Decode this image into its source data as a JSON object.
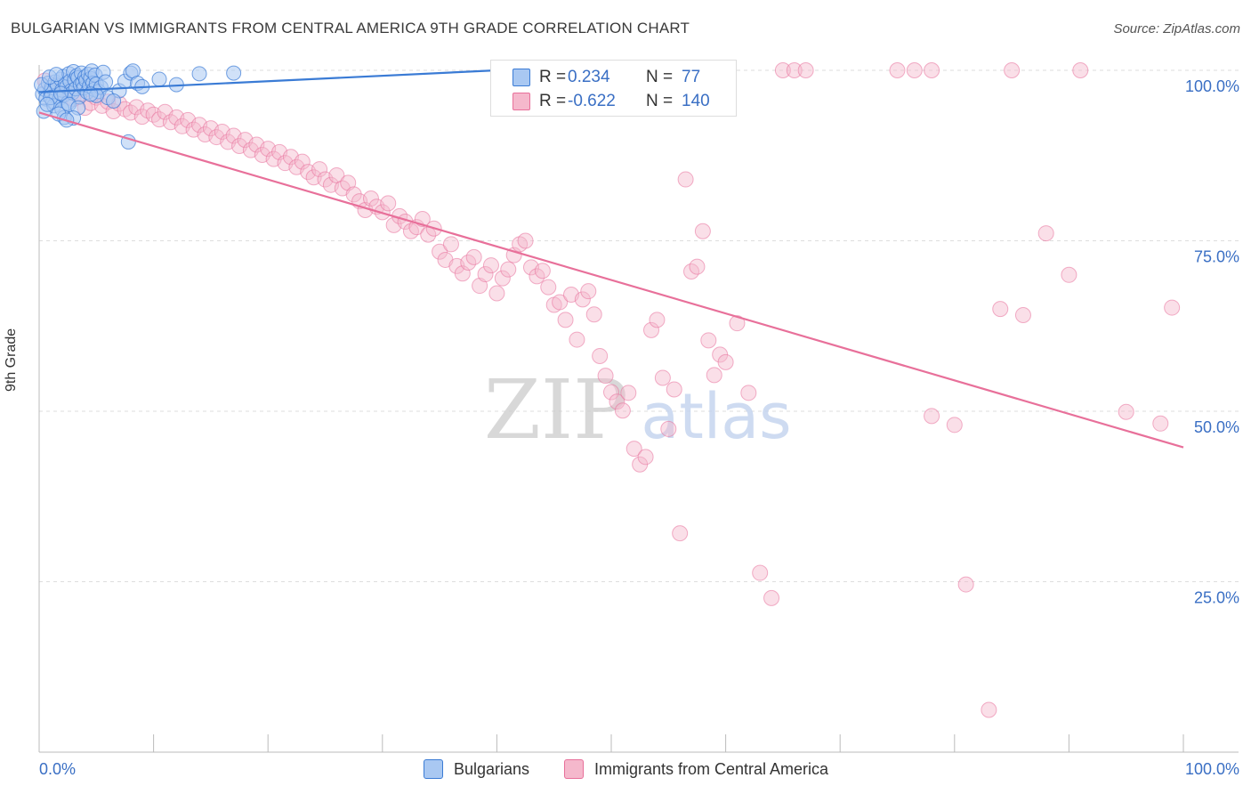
{
  "title": "BULGARIAN VS IMMIGRANTS FROM CENTRAL AMERICA 9TH GRADE CORRELATION CHART",
  "source": "Source: ZipAtlas.com",
  "watermark": {
    "zip": "ZIP",
    "atlas": "atlas"
  },
  "colors": {
    "blue": "#3a7bd5",
    "blue_fill": "#a9c8f2",
    "pink": "#e8709a",
    "pink_fill": "#f5b8cc",
    "tick_label": "#3a6fc4",
    "grid": "#dddddd"
  },
  "legend": {
    "rows": [
      {
        "r_label": "R =",
        "r_value": "0.234",
        "n_label": "N =",
        "n_value": "77"
      },
      {
        "r_label": "R =",
        "r_value": "-0.622",
        "n_label": "N =",
        "n_value": "140"
      }
    ]
  },
  "bottom_legend": [
    "Bulgarians",
    "Immigrants from Central America"
  ],
  "chart_data": {
    "type": "scatter",
    "title": "BULGARIAN VS IMMIGRANTS FROM CENTRAL AMERICA 9TH GRADE CORRELATION CHART",
    "xlabel": "",
    "ylabel": "9th Grade",
    "xlim": [
      0,
      100
    ],
    "ylim": [
      0,
      100
    ],
    "x_tick_labels": [
      "0.0%",
      "100.0%"
    ],
    "y_ticks": [
      25,
      50,
      75,
      100
    ],
    "y_tick_labels": [
      "25.0%",
      "50.0%",
      "75.0%",
      "100.0%"
    ],
    "series": [
      {
        "name": "Bulgarians",
        "R": 0.234,
        "N": 77,
        "trend": {
          "x": [
            0,
            40
          ],
          "y": [
            96.8,
            100
          ]
        },
        "points": [
          [
            0.3,
            96.5
          ],
          [
            0.5,
            97.2
          ],
          [
            0.6,
            95.8
          ],
          [
            0.8,
            98.1
          ],
          [
            1.0,
            96.9
          ],
          [
            1.1,
            97.5
          ],
          [
            1.2,
            95.4
          ],
          [
            1.4,
            98.3
          ],
          [
            1.5,
            96.2
          ],
          [
            1.6,
            97.8
          ],
          [
            1.8,
            95.9
          ],
          [
            1.9,
            98.7
          ],
          [
            2.0,
            97.1
          ],
          [
            2.1,
            99.1
          ],
          [
            2.2,
            96.4
          ],
          [
            2.3,
            98.0
          ],
          [
            2.4,
            97.6
          ],
          [
            2.5,
            95.2
          ],
          [
            2.6,
            99.5
          ],
          [
            2.7,
            98.4
          ],
          [
            2.8,
            97.0
          ],
          [
            2.9,
            96.7
          ],
          [
            3.0,
            99.8
          ],
          [
            3.1,
            98.6
          ],
          [
            3.2,
            97.3
          ],
          [
            3.3,
            99.2
          ],
          [
            3.4,
            98.9
          ],
          [
            3.5,
            96.1
          ],
          [
            3.6,
            97.9
          ],
          [
            3.7,
            99.6
          ],
          [
            3.8,
            98.2
          ],
          [
            3.9,
            97.4
          ],
          [
            4.0,
            99.0
          ],
          [
            4.1,
            98.5
          ],
          [
            4.2,
            96.8
          ],
          [
            4.3,
            99.4
          ],
          [
            4.4,
            97.7
          ],
          [
            4.5,
            98.8
          ],
          [
            4.6,
            99.9
          ],
          [
            4.7,
            98.1
          ],
          [
            4.8,
            97.2
          ],
          [
            4.9,
            99.3
          ],
          [
            5.0,
            98.0
          ],
          [
            5.2,
            96.9
          ],
          [
            5.4,
            97.5
          ],
          [
            5.6,
            99.7
          ],
          [
            5.8,
            98.3
          ],
          [
            6.0,
            96.0
          ],
          [
            0.4,
            94.0
          ],
          [
            1.3,
            94.8
          ],
          [
            2.0,
            94.3
          ],
          [
            2.2,
            93.1
          ],
          [
            1.7,
            93.6
          ],
          [
            0.2,
            97.9
          ],
          [
            0.9,
            99.0
          ],
          [
            1.5,
            99.4
          ],
          [
            2.6,
            95.0
          ],
          [
            3.4,
            94.5
          ],
          [
            5.0,
            96.3
          ],
          [
            7.0,
            97.0
          ],
          [
            7.5,
            98.4
          ],
          [
            8.0,
            99.6
          ],
          [
            8.2,
            99.9
          ],
          [
            8.6,
            98.1
          ],
          [
            9.0,
            97.6
          ],
          [
            10.5,
            98.7
          ],
          [
            12.0,
            97.9
          ],
          [
            14.0,
            99.5
          ],
          [
            17.0,
            99.6
          ],
          [
            4.5,
            96.5
          ],
          [
            6.5,
            95.5
          ],
          [
            3.0,
            93.0
          ],
          [
            7.8,
            89.5
          ],
          [
            2.4,
            92.7
          ],
          [
            1.0,
            96.0
          ],
          [
            0.7,
            95.0
          ],
          [
            1.9,
            96.6
          ]
        ]
      },
      {
        "name": "Immigrants from Central America",
        "R": -0.622,
        "N": 140,
        "trend": {
          "x": [
            0,
            100
          ],
          "y": [
            93.8,
            44.7
          ]
        },
        "points": [
          [
            0.5,
            98.5
          ],
          [
            1.0,
            97.0
          ],
          [
            1.5,
            97.8
          ],
          [
            2.0,
            96.5
          ],
          [
            2.5,
            97.2
          ],
          [
            3.0,
            95.8
          ],
          [
            3.5,
            96.1
          ],
          [
            4.0,
            94.5
          ],
          [
            4.5,
            95.2
          ],
          [
            5.0,
            96.0
          ],
          [
            5.5,
            94.8
          ],
          [
            6.0,
            95.4
          ],
          [
            6.5,
            94.0
          ],
          [
            7.0,
            95.1
          ],
          [
            7.5,
            94.3
          ],
          [
            8.0,
            93.8
          ],
          [
            8.5,
            94.6
          ],
          [
            9.0,
            93.2
          ],
          [
            9.5,
            94.1
          ],
          [
            10.0,
            93.5
          ],
          [
            10.5,
            92.8
          ],
          [
            11.0,
            93.9
          ],
          [
            11.5,
            92.4
          ],
          [
            12.0,
            93.1
          ],
          [
            12.5,
            91.8
          ],
          [
            13.0,
            92.7
          ],
          [
            13.5,
            91.3
          ],
          [
            14.0,
            92.0
          ],
          [
            14.5,
            90.6
          ],
          [
            15.0,
            91.5
          ],
          [
            15.5,
            90.2
          ],
          [
            16.0,
            91.0
          ],
          [
            16.5,
            89.5
          ],
          [
            17.0,
            90.4
          ],
          [
            17.5,
            88.9
          ],
          [
            18.0,
            89.8
          ],
          [
            18.5,
            88.3
          ],
          [
            19.0,
            89.1
          ],
          [
            19.5,
            87.6
          ],
          [
            20.0,
            88.5
          ],
          [
            20.5,
            87.0
          ],
          [
            21.0,
            88.0
          ],
          [
            21.5,
            86.4
          ],
          [
            22.0,
            87.3
          ],
          [
            22.5,
            85.8
          ],
          [
            23.0,
            86.6
          ],
          [
            23.5,
            85.1
          ],
          [
            24.0,
            84.3
          ],
          [
            24.5,
            85.5
          ],
          [
            25.0,
            84.0
          ],
          [
            25.5,
            83.2
          ],
          [
            26.0,
            84.6
          ],
          [
            26.5,
            82.7
          ],
          [
            27.0,
            83.5
          ],
          [
            27.5,
            81.8
          ],
          [
            28.0,
            80.8
          ],
          [
            28.5,
            79.5
          ],
          [
            29.0,
            81.2
          ],
          [
            29.5,
            80.0
          ],
          [
            30.0,
            79.2
          ],
          [
            30.5,
            80.5
          ],
          [
            31.0,
            77.3
          ],
          [
            31.5,
            78.6
          ],
          [
            32.0,
            77.8
          ],
          [
            32.5,
            76.4
          ],
          [
            33.0,
            77.0
          ],
          [
            33.5,
            78.2
          ],
          [
            34.0,
            75.9
          ],
          [
            34.5,
            76.8
          ],
          [
            35.0,
            73.4
          ],
          [
            35.5,
            72.2
          ],
          [
            36.0,
            74.5
          ],
          [
            36.5,
            71.3
          ],
          [
            37.0,
            70.2
          ],
          [
            37.5,
            71.8
          ],
          [
            38.0,
            72.6
          ],
          [
            38.5,
            68.4
          ],
          [
            39.0,
            70.1
          ],
          [
            39.5,
            71.4
          ],
          [
            40.0,
            67.3
          ],
          [
            40.5,
            69.5
          ],
          [
            41.0,
            70.8
          ],
          [
            41.5,
            72.9
          ],
          [
            42.0,
            74.5
          ],
          [
            42.5,
            75.0
          ],
          [
            43.0,
            71.1
          ],
          [
            43.5,
            69.8
          ],
          [
            44.0,
            70.6
          ],
          [
            44.5,
            68.2
          ],
          [
            45.0,
            65.6
          ],
          [
            45.5,
            66.0
          ],
          [
            46.0,
            63.4
          ],
          [
            46.5,
            67.1
          ],
          [
            47.0,
            60.5
          ],
          [
            47.5,
            66.4
          ],
          [
            48.0,
            67.6
          ],
          [
            48.5,
            64.2
          ],
          [
            49.0,
            58.1
          ],
          [
            49.5,
            55.2
          ],
          [
            50.0,
            52.8
          ],
          [
            50.5,
            51.4
          ],
          [
            51.0,
            50.1
          ],
          [
            51.5,
            52.7
          ],
          [
            52.0,
            44.5
          ],
          [
            52.5,
            42.2
          ],
          [
            53.0,
            43.3
          ],
          [
            53.5,
            61.9
          ],
          [
            54.0,
            63.4
          ],
          [
            54.5,
            54.9
          ],
          [
            55.0,
            47.4
          ],
          [
            55.5,
            53.2
          ],
          [
            56.0,
            32.1
          ],
          [
            56.5,
            84.0
          ],
          [
            57.0,
            70.5
          ],
          [
            57.5,
            71.2
          ],
          [
            58.0,
            76.4
          ],
          [
            58.5,
            60.4
          ],
          [
            59.0,
            55.3
          ],
          [
            59.5,
            58.3
          ],
          [
            60.0,
            57.2
          ],
          [
            61.0,
            62.9
          ],
          [
            62.0,
            52.7
          ],
          [
            63.0,
            26.3
          ],
          [
            64.0,
            22.6
          ],
          [
            65.0,
            100.0
          ],
          [
            66.0,
            100.0
          ],
          [
            67.0,
            100.0
          ],
          [
            75.0,
            100.0
          ],
          [
            76.5,
            100.0
          ],
          [
            78.0,
            100.0
          ],
          [
            85.0,
            100.0
          ],
          [
            91.0,
            100.0
          ],
          [
            78.0,
            49.3
          ],
          [
            80.0,
            48.0
          ],
          [
            81.0,
            24.6
          ],
          [
            83.0,
            6.2
          ],
          [
            84.0,
            65.0
          ],
          [
            86.0,
            64.1
          ],
          [
            88.0,
            76.1
          ],
          [
            90.0,
            70.0
          ],
          [
            95.0,
            49.9
          ],
          [
            98.0,
            48.2
          ],
          [
            99.0,
            65.2
          ]
        ]
      }
    ]
  }
}
